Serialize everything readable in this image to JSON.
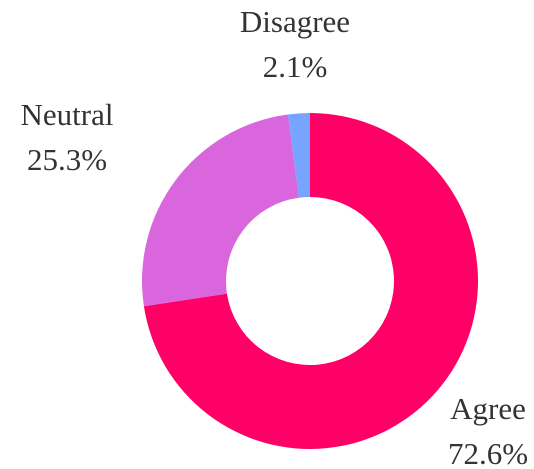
{
  "chart_data": {
    "type": "donut",
    "categories": [
      "Agree",
      "Neutral",
      "Disagree"
    ],
    "values": [
      72.6,
      25.3,
      2.1
    ],
    "value_labels": [
      "72.6%",
      "25.3%",
      "2.1%"
    ],
    "colors": [
      "#ff0066",
      "#d966dd",
      "#77a4ff"
    ]
  }
}
